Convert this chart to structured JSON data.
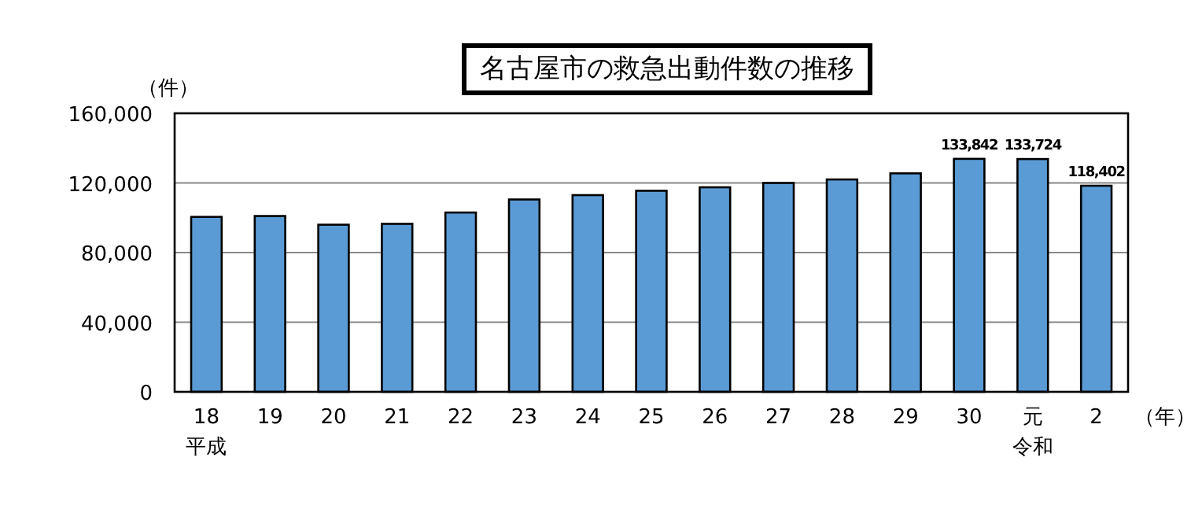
{
  "chart_data": {
    "type": "bar",
    "title": "名古屋市の救急出動件数の推移",
    "ylabel": "（件）",
    "xlabel": "（年）",
    "categories": [
      "18",
      "19",
      "20",
      "21",
      "22",
      "23",
      "24",
      "25",
      "26",
      "27",
      "28",
      "29",
      "30",
      "元",
      "2"
    ],
    "annotations": [
      "平成",
      "令和"
    ],
    "values": [
      100500,
      101000,
      96000,
      96500,
      103000,
      110500,
      113000,
      115500,
      117500,
      120000,
      122000,
      125500,
      133842,
      133724,
      118402
    ],
    "value_labels": [
      null,
      null,
      null,
      null,
      null,
      null,
      null,
      null,
      null,
      null,
      null,
      null,
      "133,842",
      "133,724",
      "118,402"
    ],
    "color": "#5b9bd5",
    "ylim": [
      0,
      160000
    ],
    "yticks": [
      {
        "value": 0,
        "label": "0"
      },
      {
        "value": 40000,
        "label": "40,000"
      },
      {
        "value": 80000,
        "label": "80,000"
      },
      {
        "value": 120000,
        "label": "120,000"
      },
      {
        "value": 160000,
        "label": "160,000"
      }
    ],
    "grid": "y"
  }
}
